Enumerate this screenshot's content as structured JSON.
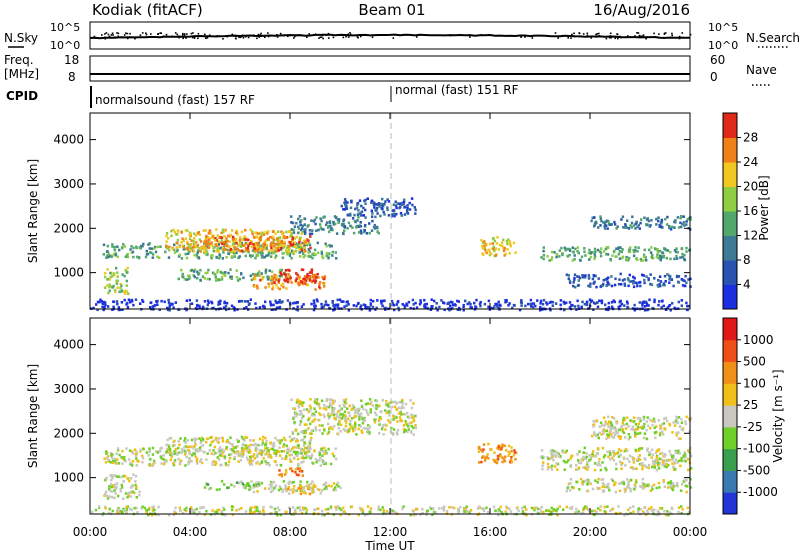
{
  "header": {
    "site": "Kodiak (fitACF)",
    "beam": "Beam 01",
    "date": "16/Aug/2016"
  },
  "strips": {
    "nsky_label": "N.Sky",
    "nsky_ticks": [
      "10^5",
      "10^0"
    ],
    "nsearch_label": "N.Search",
    "nsearch_ticks": [
      "10^5",
      "10^0"
    ],
    "freq_label_line1": "Freq.",
    "freq_label_line2": "[MHz]",
    "freq_ticks": [
      "18",
      "8"
    ],
    "nave_label": "Nave",
    "nave_ticks": [
      "60",
      "0"
    ],
    "cpid_label": "CPID",
    "cpid_modes": [
      "normalsound (fast) 157 RF",
      "normal (fast) 151 RF"
    ]
  },
  "chart_data": [
    {
      "type": "heatmap",
      "title": "",
      "ylabel": "Slant Range [km]",
      "xlabel": "",
      "ylim": [
        180,
        4600
      ],
      "xlim": [
        0,
        24
      ],
      "yticks": [
        "1000",
        "2000",
        "3000",
        "4000"
      ],
      "xticks": [
        "00:00",
        "04:00",
        "08:00",
        "12:00",
        "16:00",
        "20:00",
        "00:00"
      ],
      "colorbar": {
        "label": "Power [dB]",
        "ticks": [
          "4",
          "8",
          "12",
          "16",
          "20",
          "24",
          "28"
        ],
        "colors": [
          "#1c2fe0",
          "#2a52b0",
          "#3c7a95",
          "#52a86a",
          "#8fce42",
          "#f0c820",
          "#f08018",
          "#e02818"
        ]
      },
      "regions": [
        {
          "t0": 0.5,
          "t1": 1.5,
          "r0": 550,
          "r1": 1150,
          "level": 4
        },
        {
          "t0": 0.5,
          "t1": 9.8,
          "r0": 1350,
          "r1": 1700,
          "level": 3
        },
        {
          "t0": 3.0,
          "t1": 8.5,
          "r0": 1500,
          "r1": 2000,
          "level": 5
        },
        {
          "t0": 4.5,
          "t1": 8.8,
          "r0": 1500,
          "r1": 1850,
          "level": 6
        },
        {
          "t0": 3.5,
          "t1": 8.0,
          "r0": 850,
          "r1": 1100,
          "level": 3
        },
        {
          "t0": 6.5,
          "t1": 9.5,
          "r0": 650,
          "r1": 1000,
          "level": 6
        },
        {
          "t0": 7.5,
          "t1": 9.2,
          "r0": 800,
          "r1": 1100,
          "level": 7
        },
        {
          "t0": 8.0,
          "t1": 11.5,
          "r0": 1900,
          "r1": 2300,
          "level": 2
        },
        {
          "t0": 10.0,
          "t1": 13.0,
          "r0": 2300,
          "r1": 2700,
          "level": 1
        },
        {
          "t0": 15.6,
          "t1": 17.0,
          "r0": 1400,
          "r1": 1850,
          "level": 5
        },
        {
          "t0": 18.0,
          "t1": 24.0,
          "r0": 1300,
          "r1": 1600,
          "level": 3
        },
        {
          "t0": 19.0,
          "t1": 24.0,
          "r0": 700,
          "r1": 1000,
          "level": 1
        },
        {
          "t0": 20.0,
          "t1": 24.0,
          "r0": 2000,
          "r1": 2300,
          "level": 2
        },
        {
          "t0": 0.0,
          "t1": 24.0,
          "r0": 180,
          "r1": 420,
          "level": 0
        }
      ]
    },
    {
      "type": "heatmap",
      "title": "",
      "ylabel": "Slant Range [km]",
      "xlabel": "Time UT",
      "ylim": [
        180,
        4600
      ],
      "xlim": [
        0,
        24
      ],
      "yticks": [
        "1000",
        "2000",
        "3000",
        "4000"
      ],
      "xticks": [
        "00:00",
        "04:00",
        "08:00",
        "12:00",
        "16:00",
        "20:00",
        "00:00"
      ],
      "colorbar": {
        "label": "Velocity [m s⁻¹]",
        "ticks": [
          "1000",
          "500",
          "100",
          "25",
          "-25",
          "-100",
          "-500",
          "-1000"
        ],
        "colors": [
          "#2236d8",
          "#3a7ab0",
          "#3aa050",
          "#6fd02a",
          "#c8c8c0",
          "#f0c018",
          "#f09018",
          "#f05018",
          "#e01818"
        ]
      },
      "regions": [
        {
          "t0": 0.5,
          "t1": 9.8,
          "r0": 1300,
          "r1": 1700,
          "level": 4
        },
        {
          "t0": 3.0,
          "t1": 8.8,
          "r0": 1550,
          "r1": 1950,
          "level": 4
        },
        {
          "t0": 0.5,
          "t1": 2.0,
          "r0": 550,
          "r1": 1100,
          "level": 4
        },
        {
          "t0": 6.5,
          "t1": 10.0,
          "r0": 700,
          "r1": 950,
          "level": 4
        },
        {
          "t0": 4.5,
          "t1": 7.0,
          "r0": 750,
          "r1": 950,
          "level": 3
        },
        {
          "t0": 7.5,
          "t1": 8.5,
          "r0": 1050,
          "r1": 1250,
          "level": 6
        },
        {
          "t0": 7.8,
          "t1": 9.2,
          "r0": 650,
          "r1": 850,
          "level": 5
        },
        {
          "t0": 8.0,
          "t1": 13.0,
          "r0": 2000,
          "r1": 2800,
          "level": 4
        },
        {
          "t0": 15.5,
          "t1": 17.0,
          "r0": 1350,
          "r1": 1800,
          "level": 6
        },
        {
          "t0": 18.0,
          "t1": 24.0,
          "r0": 1200,
          "r1": 1700,
          "level": 4
        },
        {
          "t0": 19.0,
          "t1": 24.0,
          "r0": 700,
          "r1": 1000,
          "level": 4
        },
        {
          "t0": 20.0,
          "t1": 24.0,
          "r0": 1900,
          "r1": 2400,
          "level": 4
        },
        {
          "t0": 0.0,
          "t1": 24.0,
          "r0": 180,
          "r1": 380,
          "level": 4
        }
      ]
    }
  ]
}
